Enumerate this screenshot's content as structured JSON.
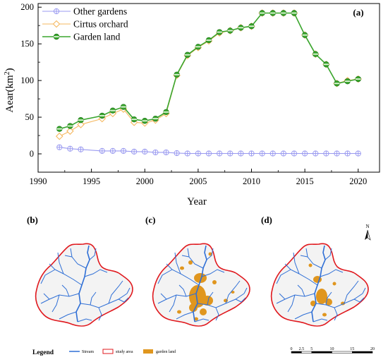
{
  "chart_data": {
    "type": "line",
    "panel_label": "(a)",
    "xlabel": "Year",
    "ylabel_base": "Aear(km",
    "ylabel_sup": "2",
    "ylabel_end": ")",
    "xlim": [
      1990,
      2022
    ],
    "ylim": [
      -25,
      205
    ],
    "xticks": [
      1990,
      1995,
      2000,
      2005,
      2010,
      2015,
      2020
    ],
    "yticks": [
      0,
      50,
      100,
      150,
      200
    ],
    "legend_position": "top-left",
    "series": [
      {
        "name": "Other gardens",
        "color": "#9a9af0",
        "marker": "circle-cross",
        "x": [
          1992,
          1993,
          1994,
          1996,
          1997,
          1998,
          1999,
          2000,
          2001,
          2002,
          2003,
          2004,
          2005,
          2006,
          2007,
          2008,
          2009,
          2010,
          2011,
          2012,
          2013,
          2014,
          2015,
          2016,
          2017,
          2018,
          2019,
          2020
        ],
        "values": [
          9,
          7,
          6,
          4,
          4,
          4,
          3,
          3,
          2,
          2,
          1,
          0.5,
          0.5,
          0.5,
          0.5,
          0.5,
          0.5,
          0.5,
          0.5,
          0.5,
          0.5,
          0.5,
          0.5,
          0.5,
          0.5,
          0.5,
          0.5,
          0.5
        ]
      },
      {
        "name": "Cirtus orchard",
        "color": "#f5b860",
        "marker": "diamond",
        "x": [
          1992,
          1993,
          1994,
          1996,
          1997,
          1998,
          1999,
          2000,
          2001,
          2002,
          2003,
          2004,
          2005,
          2006,
          2007,
          2008,
          2009,
          2010,
          2011,
          2012,
          2013,
          2014,
          2015,
          2016,
          2017,
          2018,
          2019,
          2020
        ],
        "values": [
          24,
          31,
          40,
          48,
          55,
          61,
          43,
          42,
          46,
          55,
          107,
          134,
          145,
          154,
          165,
          168,
          172,
          174,
          192,
          192,
          192,
          192,
          162,
          136,
          122,
          96,
          100,
          102
        ]
      },
      {
        "name": "Garden land",
        "color": "#3aa62e",
        "marker": "circle-bar",
        "x": [
          1992,
          1993,
          1994,
          1996,
          1997,
          1998,
          1999,
          2000,
          2001,
          2002,
          2003,
          2004,
          2005,
          2006,
          2007,
          2008,
          2009,
          2010,
          2011,
          2012,
          2013,
          2014,
          2015,
          2016,
          2017,
          2018,
          2019,
          2020
        ],
        "values": [
          34,
          38,
          46,
          52,
          59,
          64,
          47,
          45,
          48,
          57,
          108,
          135,
          146,
          155,
          166,
          168,
          172,
          174,
          192,
          192,
          192,
          192,
          162,
          136,
          122,
          96,
          99,
          102
        ]
      }
    ]
  },
  "maps": {
    "panels": [
      "(b)",
      "(c)",
      "(d)"
    ],
    "legend_title": "Legend",
    "legend_items": [
      {
        "label": "Stream",
        "color": "#2f6fd6"
      },
      {
        "label": "study area",
        "color": "#e0191e"
      },
      {
        "label": "garden land",
        "color": "#e0961e"
      }
    ],
    "north": "N",
    "scalebar_ticks": [
      "0",
      "2.5",
      "5",
      "10",
      "15",
      "20"
    ]
  }
}
